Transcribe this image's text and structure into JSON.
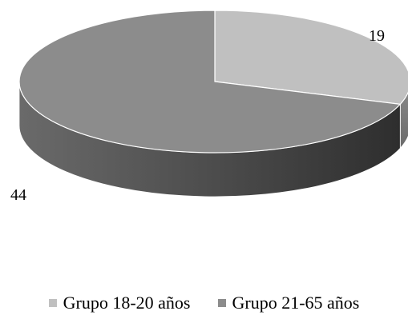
{
  "chart_data": {
    "type": "pie",
    "style": "3d",
    "series": [
      {
        "name": "Grupo 18-20 años",
        "value": 19,
        "color": "#c0c0c0"
      },
      {
        "name": "Grupo 21-65 años",
        "value": 44,
        "color": "#8c8c8c"
      }
    ],
    "legend_position": "bottom"
  }
}
